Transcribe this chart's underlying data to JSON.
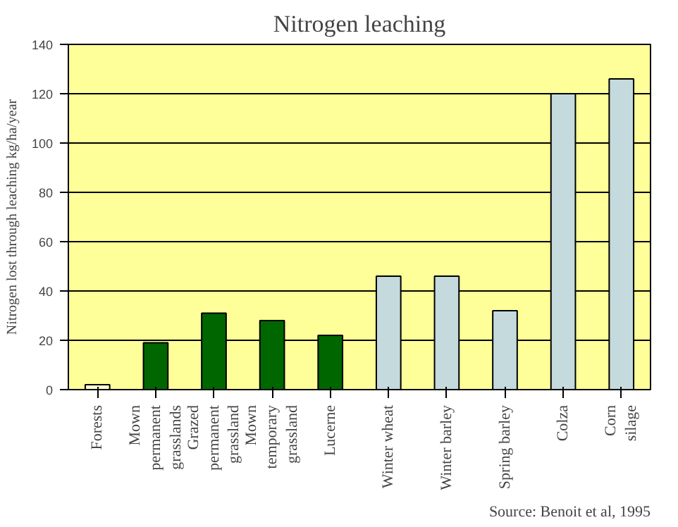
{
  "chart_data": {
    "type": "bar",
    "title": "Nitrogen leaching",
    "ylabel": "Nitrogen lost through leaching kg/ha/year",
    "categories": [
      "Forests",
      "Mown\npermanent\ngrasslands",
      "Grazed\npermanent\ngrassland",
      "Mown\ntemporary\ngrassland",
      "Lucerne",
      "Winter wheat",
      "Winter barley",
      "Spring barley",
      "Colza",
      "Corn\nsilage"
    ],
    "values": [
      2,
      19,
      31,
      28,
      22,
      46,
      46,
      32,
      120,
      126
    ],
    "colors": [
      "#ffffcc",
      "#006600",
      "#006600",
      "#006600",
      "#006600",
      "#c4dadd",
      "#c4dadd",
      "#c4dadd",
      "#c4dadd",
      "#c4dadd"
    ],
    "ylim": [
      0,
      140
    ],
    "yticks": [
      0,
      20,
      40,
      60,
      80,
      100,
      120,
      140
    ],
    "grid": "y",
    "annotations": [
      "Source: Benoit et al, 1995"
    ]
  }
}
